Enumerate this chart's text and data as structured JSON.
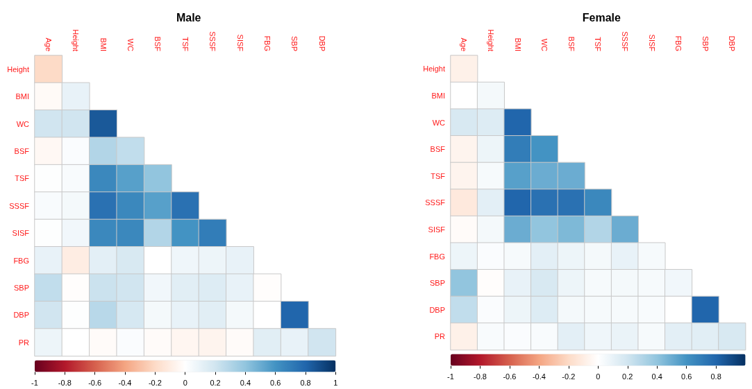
{
  "chart_data": [
    {
      "type": "heatmap",
      "title": "Male",
      "categories": [
        "Age",
        "Height",
        "BMI",
        "WC",
        "BSF",
        "TSF",
        "SSSF",
        "SISF",
        "FBG",
        "SBP",
        "DBP"
      ],
      "y_categories": [
        "Height",
        "BMI",
        "WC",
        "BSF",
        "TSF",
        "SSSF",
        "SISF",
        "FBG",
        "SBP",
        "DBP",
        "PR"
      ],
      "cells": [
        [
          -0.2,
          null,
          null,
          null,
          null,
          null,
          null,
          null,
          null,
          null,
          null
        ],
        [
          -0.03,
          0.1,
          null,
          null,
          null,
          null,
          null,
          null,
          null,
          null,
          null
        ],
        [
          0.2,
          0.2,
          0.85,
          null,
          null,
          null,
          null,
          null,
          null,
          null,
          null
        ],
        [
          -0.04,
          0.02,
          0.3,
          0.25,
          null,
          null,
          null,
          null,
          null,
          null,
          null
        ],
        [
          0.01,
          0.03,
          0.65,
          0.55,
          0.4,
          null,
          null,
          null,
          null,
          null,
          null
        ],
        [
          0.03,
          0.05,
          0.75,
          0.65,
          0.55,
          0.75,
          null,
          null,
          null,
          null,
          null
        ],
        [
          0.01,
          0.06,
          0.65,
          0.65,
          0.3,
          0.6,
          0.7,
          null,
          null,
          null,
          null
        ],
        [
          0.1,
          -0.1,
          0.12,
          0.17,
          0.0,
          0.07,
          0.08,
          0.1,
          null,
          null,
          null
        ],
        [
          0.25,
          -0.01,
          0.22,
          0.2,
          0.06,
          0.13,
          0.15,
          0.1,
          -0.01,
          null,
          null
        ],
        [
          0.2,
          0.01,
          0.28,
          0.18,
          0.05,
          0.1,
          0.13,
          0.05,
          0.0,
          0.8,
          null
        ],
        [
          0.08,
          0.0,
          -0.02,
          0.02,
          -0.02,
          -0.05,
          -0.06,
          -0.02,
          0.13,
          0.1,
          0.2
        ]
      ],
      "clim": [
        -1,
        1
      ],
      "cticks": [
        -1,
        -0.8,
        -0.6,
        -0.4,
        -0.2,
        0,
        0.2,
        0.4,
        0.6,
        0.8,
        1
      ]
    },
    {
      "type": "heatmap",
      "title": "Female",
      "categories": [
        "Age",
        "Height",
        "BMI",
        "WC",
        "BSF",
        "TSF",
        "SSSF",
        "SISF",
        "FBG",
        "SBP",
        "DBP"
      ],
      "y_categories": [
        "Height",
        "BMI",
        "WC",
        "BSF",
        "TSF",
        "SSSF",
        "SISF",
        "FBG",
        "SBP",
        "DBP",
        "PR"
      ],
      "cells": [
        [
          -0.08,
          null,
          null,
          null,
          null,
          null,
          null,
          null,
          null,
          null,
          null
        ],
        [
          0.0,
          0.05,
          null,
          null,
          null,
          null,
          null,
          null,
          null,
          null,
          null
        ],
        [
          0.17,
          0.15,
          0.8,
          null,
          null,
          null,
          null,
          null,
          null,
          null,
          null
        ],
        [
          -0.06,
          0.08,
          0.7,
          0.6,
          null,
          null,
          null,
          null,
          null,
          null,
          null
        ],
        [
          -0.06,
          0.04,
          0.55,
          0.5,
          0.5,
          null,
          null,
          null,
          null,
          null,
          null
        ],
        [
          -0.12,
          0.12,
          0.8,
          0.75,
          0.75,
          0.65,
          null,
          null,
          null,
          null,
          null
        ],
        [
          -0.02,
          0.05,
          0.5,
          0.4,
          0.45,
          0.3,
          0.5,
          null,
          null,
          null,
          null
        ],
        [
          0.08,
          0.02,
          0.04,
          0.12,
          0.08,
          0.05,
          0.1,
          0.04,
          null,
          null,
          null
        ],
        [
          0.4,
          -0.01,
          0.1,
          0.17,
          0.08,
          0.04,
          0.05,
          0.04,
          0.06,
          null,
          null
        ],
        [
          0.25,
          0.02,
          0.08,
          0.15,
          0.05,
          0.04,
          0.04,
          0.03,
          0.0,
          0.8,
          null
        ],
        [
          -0.08,
          0.03,
          0.02,
          0.03,
          0.12,
          0.07,
          0.09,
          0.04,
          0.12,
          0.13,
          0.17
        ]
      ],
      "clim": [
        -1,
        1
      ],
      "cticks": [
        -1,
        -0.8,
        -0.6,
        -0.4,
        -0.2,
        0,
        0.2,
        0.4,
        0.6,
        0.8
      ]
    }
  ]
}
